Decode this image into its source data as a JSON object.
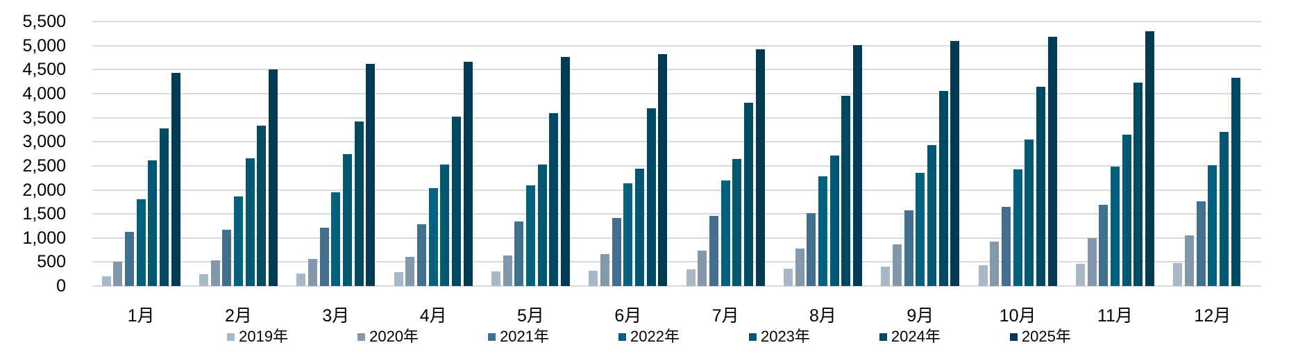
{
  "chart_data": {
    "type": "bar",
    "title": "",
    "categories": [
      "1月",
      "2月",
      "3月",
      "4月",
      "5月",
      "6月",
      "7月",
      "8月",
      "9月",
      "10月",
      "11月",
      "12月"
    ],
    "series": [
      {
        "name": "2019年",
        "color": "#a9b8c7",
        "values": [
          210,
          250,
          260,
          290,
          300,
          320,
          340,
          360,
          400,
          430,
          460,
          470
        ]
      },
      {
        "name": "2020年",
        "color": "#8398aa",
        "values": [
          500,
          530,
          560,
          600,
          630,
          670,
          730,
          780,
          860,
          930,
          1000,
          1060
        ]
      },
      {
        "name": "2021年",
        "color": "#41708f",
        "values": [
          1130,
          1170,
          1210,
          1290,
          1350,
          1410,
          1460,
          1520,
          1570,
          1640,
          1690,
          1760
        ]
      },
      {
        "name": "2022年",
        "color": "#02617f",
        "values": [
          1810,
          1860,
          1950,
          2030,
          2090,
          2140,
          2200,
          2280,
          2350,
          2420,
          2480,
          2510
        ]
      },
      {
        "name": "2023年",
        "color": "#015872",
        "values": [
          2620,
          2650,
          2740,
          2520,
          2530,
          2440,
          2640,
          2720,
          2930,
          3050,
          3150,
          3200
        ]
      },
      {
        "name": "2024年",
        "color": "#014a63",
        "values": [
          3280,
          3340,
          3420,
          3520,
          3600,
          3690,
          3810,
          3960,
          4050,
          4140,
          4230,
          4330
        ]
      },
      {
        "name": "2025年",
        "color": "#013a52",
        "values": [
          4430,
          4500,
          4620,
          4660,
          4760,
          4820,
          4920,
          5010,
          5090,
          5190,
          5300,
          null
        ]
      }
    ],
    "ylim": [
      0,
      5500
    ],
    "ytick_step": 500,
    "ytick_labels": [
      "0",
      "500",
      "1,000",
      "1,500",
      "2,000",
      "2,500",
      "3,000",
      "3,500",
      "4,000",
      "4,500",
      "5,000",
      "5,500"
    ],
    "grid": true,
    "legend_position": "bottom"
  },
  "colors": {
    "background": "#ffffff",
    "gridline": "#d9d9d9",
    "axis_text": "#000000"
  }
}
